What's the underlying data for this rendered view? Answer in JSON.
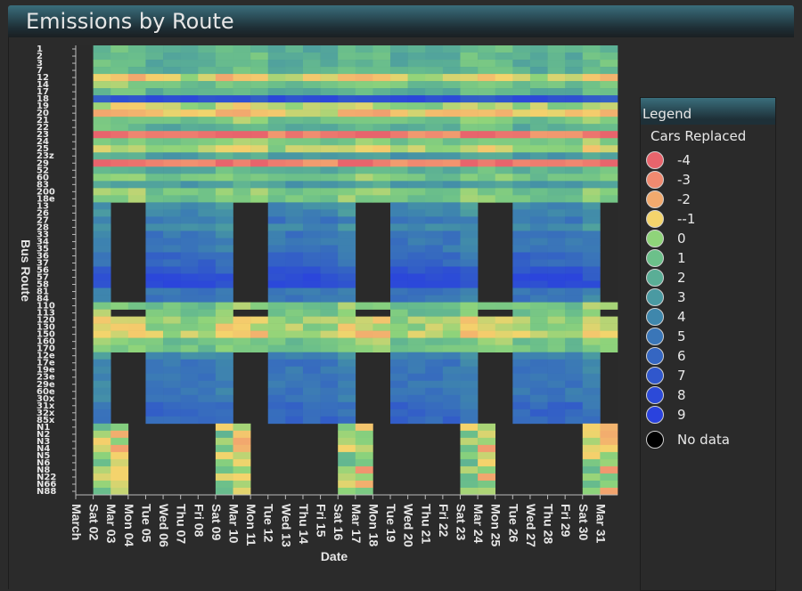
{
  "title": "Emissions by Route",
  "legend": {
    "header": "Legend",
    "subtitle": "Cars Replaced",
    "items": [
      {
        "label": "-4",
        "color": "#e8646c"
      },
      {
        "label": "-3",
        "color": "#f08a70"
      },
      {
        "label": "-2",
        "color": "#f2aa6e"
      },
      {
        "label": "--1",
        "color": "#f4d46c"
      },
      {
        "label": "0",
        "color": "#8fd47a"
      },
      {
        "label": "1",
        "color": "#6cc08a"
      },
      {
        "label": "2",
        "color": "#5aae96"
      },
      {
        "label": "3",
        "color": "#4a9aa2"
      },
      {
        "label": "4",
        "color": "#3f87ac"
      },
      {
        "label": "5",
        "color": "#3a76b8"
      },
      {
        "label": "6",
        "color": "#3566c2"
      },
      {
        "label": "7",
        "color": "#3057cc"
      },
      {
        "label": "8",
        "color": "#2c4ad8"
      },
      {
        "label": "9",
        "color": "#2a42de"
      }
    ],
    "nodata": {
      "label": "No data",
      "color": "#000000"
    }
  },
  "chart_data": {
    "type": "heatmap",
    "xlabel": "Date",
    "ylabel": "Bus Route",
    "x": [
      "March",
      "Sat 02",
      "Mar 03",
      "Mon 04",
      "Tue 05",
      "Wed 06",
      "Thu 07",
      "Fri 08",
      "Sat 09",
      "Mar 10",
      "Mon 11",
      "Tue 12",
      "Wed 13",
      "Thu 14",
      "Fri 15",
      "Sat 16",
      "Mar 17",
      "Mon 18",
      "Tue 19",
      "Wed 20",
      "Thu 21",
      "Fri 22",
      "Sat 23",
      "Mar 24",
      "Mon 25",
      "Tue 26",
      "Wed 27",
      "Thu 28",
      "Fri 29",
      "Sat 30",
      "Mar 31"
    ],
    "y": [
      "1",
      "2",
      "3",
      "7",
      "12",
      "14",
      "17",
      "18",
      "19",
      "20",
      "21",
      "22",
      "23",
      "24",
      "25",
      "23z",
      "29",
      "52",
      "60",
      "83",
      "200",
      "18e",
      "13",
      "26",
      "27",
      "28",
      "33",
      "34",
      "35",
      "36",
      "37",
      "56",
      "57",
      "58",
      "81",
      "84",
      "110",
      "113",
      "120",
      "130",
      "150",
      "160",
      "170",
      "12e",
      "17e",
      "19e",
      "23e",
      "29e",
      "60e",
      "30x",
      "31x",
      "32x",
      "85x",
      "N1",
      "N2",
      "N3",
      "N4",
      "N5",
      "N6",
      "N8",
      "N22",
      "N66",
      "N88"
    ],
    "cell_value_range": [
      -4,
      9
    ],
    "base_by_route": [
      2,
      2,
      2,
      2,
      -0.6,
      1,
      2,
      7.8,
      0,
      -1,
      1,
      2,
      -3,
      1,
      0,
      3,
      -3,
      2,
      1,
      3,
      1,
      1,
      4,
      4,
      5,
      4,
      5,
      5,
      5,
      6,
      6,
      7,
      8,
      8,
      5,
      5,
      1,
      1,
      0,
      0,
      -0.5,
      1,
      1,
      4,
      5,
      5,
      5,
      5,
      5,
      5,
      6,
      6,
      6,
      -1.5,
      -1.5,
      -1.5,
      -1.5,
      -1.5,
      -1.5,
      -1.5,
      -1.5,
      -1.5,
      -1.5
    ],
    "day_type": [
      "S",
      "S",
      "A",
      "B",
      "W",
      "W",
      "W",
      "W",
      "S",
      "A",
      "B",
      "W",
      "W",
      "W",
      "W",
      "S",
      "A",
      "B",
      "W",
      "W",
      "W",
      "W",
      "S",
      "A",
      "B",
      "W",
      "W",
      "W",
      "W",
      "S",
      "A"
    ],
    "no_data_route_ranges": {
      "B": [
        [
          22,
          35
        ],
        [
          43,
          52
        ],
        [
          53,
          62
        ]
      ],
      "W": [
        [
          53,
          62
        ]
      ],
      "A": [
        [
          22,
          35
        ],
        [
          43,
          52
        ]
      ]
    },
    "no_data_single_rows": {
      "A": [
        37
      ],
      "B": [
        37
      ]
    },
    "date_columns_shown": [
      1,
      30
    ],
    "column_count": 31
  }
}
